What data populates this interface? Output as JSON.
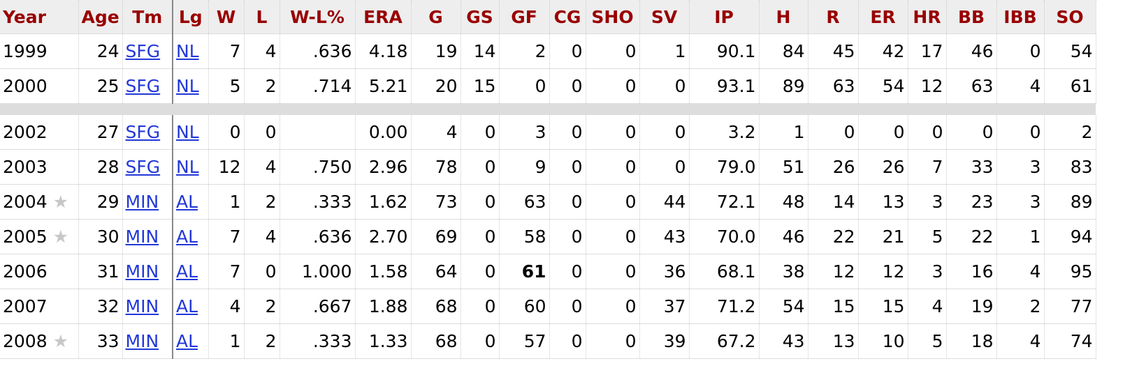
{
  "table": {
    "header": [
      "Year",
      "Age",
      "Tm",
      "Lg",
      "W",
      "L",
      "W-L%",
      "ERA",
      "G",
      "GS",
      "GF",
      "CG",
      "SHO",
      "SV",
      "IP",
      "H",
      "R",
      "ER",
      "HR",
      "BB",
      "IBB",
      "SO"
    ],
    "rows": [
      [
        "1999",
        "24",
        "SFG",
        "NL",
        "7",
        "4",
        ".636",
        "4.18",
        "19",
        "14",
        "2",
        "0",
        "0",
        "1",
        "90.1",
        "84",
        "45",
        "42",
        "17",
        "46",
        "0",
        "54"
      ],
      [
        "2000",
        "25",
        "SFG",
        "NL",
        "5",
        "2",
        ".714",
        "5.21",
        "20",
        "15",
        "0",
        "0",
        "0",
        "0",
        "93.1",
        "89",
        "63",
        "54",
        "12",
        "63",
        "4",
        "61"
      ],
      [
        "2002",
        "27",
        "SFG",
        "NL",
        "0",
        "0",
        null,
        "0.00",
        "4",
        "0",
        "3",
        "0",
        "0",
        "0",
        "3.2",
        "1",
        "0",
        "0",
        "0",
        "0",
        "0",
        "2"
      ],
      [
        "2003",
        "28",
        "SFG",
        "NL",
        "12",
        "4",
        ".750",
        "2.96",
        "78",
        "0",
        "9",
        "0",
        "0",
        "0",
        "79.0",
        "51",
        "26",
        "26",
        "7",
        "33",
        "3",
        "83"
      ],
      [
        "2004",
        "29",
        "MIN",
        "AL",
        "1",
        "2",
        ".333",
        "1.62",
        "73",
        "0",
        "63",
        "0",
        "0",
        "44",
        "72.1",
        "48",
        "14",
        "13",
        "3",
        "23",
        "3",
        "89"
      ],
      [
        "2005",
        "30",
        "MIN",
        "AL",
        "7",
        "4",
        ".636",
        "2.70",
        "69",
        "0",
        "58",
        "0",
        "0",
        "43",
        "70.0",
        "46",
        "22",
        "21",
        "5",
        "22",
        "1",
        "94"
      ],
      [
        "2006",
        "31",
        "MIN",
        "AL",
        "7",
        "0",
        "1.000",
        "1.58",
        "64",
        "0",
        "61",
        "0",
        "0",
        "36",
        "68.1",
        "38",
        "12",
        "12",
        "3",
        "16",
        "4",
        "95"
      ],
      [
        "2007",
        "32",
        "MIN",
        "AL",
        "4",
        "2",
        ".667",
        "1.88",
        "68",
        "0",
        "60",
        "0",
        "0",
        "37",
        "71.2",
        "54",
        "15",
        "15",
        "4",
        "19",
        "2",
        "77"
      ],
      [
        "2008",
        "33",
        "MIN",
        "AL",
        "1",
        "2",
        ".333",
        "1.33",
        "68",
        "0",
        "57",
        "0",
        "0",
        "39",
        "67.2",
        "43",
        "13",
        "10",
        "5",
        "18",
        "4",
        "74"
      ]
    ]
  }
}
